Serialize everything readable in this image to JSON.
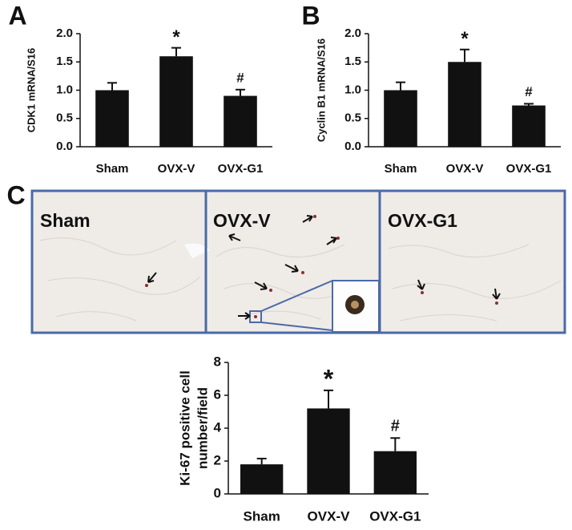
{
  "chart_data": [
    {
      "type": "bar",
      "panel_label": "A",
      "ylabel": [
        "CDK1 mRNA/S16"
      ],
      "categories": [
        "Sham",
        "OVX-V",
        "OVX-G1"
      ],
      "values": [
        1.0,
        1.6,
        0.9
      ],
      "errors": [
        0.13,
        0.15,
        0.11
      ],
      "markers": [
        null,
        "*",
        "#"
      ],
      "color": "#111111",
      "ylim": [
        0,
        2
      ],
      "yticks": [
        {
          "value": 0,
          "label": "0.0"
        },
        {
          "value": 0.5,
          "label": "0.5"
        },
        {
          "value": 1,
          "label": "1.0"
        },
        {
          "value": 1.5,
          "label": "1.5"
        },
        {
          "value": 2,
          "label": "2.0"
        }
      ]
    },
    {
      "type": "bar",
      "panel_label": "B",
      "ylabel": [
        "Cyclin B1 mRNA/S16"
      ],
      "categories": [
        "Sham",
        "OVX-V",
        "OVX-G1"
      ],
      "values": [
        1.0,
        1.5,
        0.73
      ],
      "errors": [
        0.14,
        0.22,
        0.03
      ],
      "markers": [
        null,
        "*",
        "#"
      ],
      "color": "#111111",
      "ylim": [
        0,
        2
      ],
      "yticks": [
        {
          "value": 0,
          "label": "0.0"
        },
        {
          "value": 0.5,
          "label": "0.5"
        },
        {
          "value": 1,
          "label": "1.0"
        },
        {
          "value": 1.5,
          "label": "1.5"
        },
        {
          "value": 2,
          "label": "2.0"
        }
      ]
    },
    {
      "type": "bar",
      "panel_label": "C",
      "ylabel": [
        "Ki-67 positive cell",
        "number/field"
      ],
      "categories": [
        "Sham",
        "OVX-V",
        "OVX-G1"
      ],
      "values": [
        1.8,
        5.2,
        2.6
      ],
      "errors": [
        0.35,
        1.1,
        0.8
      ],
      "markers": [
        null,
        "*",
        "#"
      ],
      "color": "#111111",
      "ylim": [
        0,
        8
      ],
      "yticks": [
        0,
        2,
        4,
        6,
        8
      ]
    }
  ],
  "micrographs": [
    "Sham",
    "OVX-V",
    "OVX-G1"
  ]
}
